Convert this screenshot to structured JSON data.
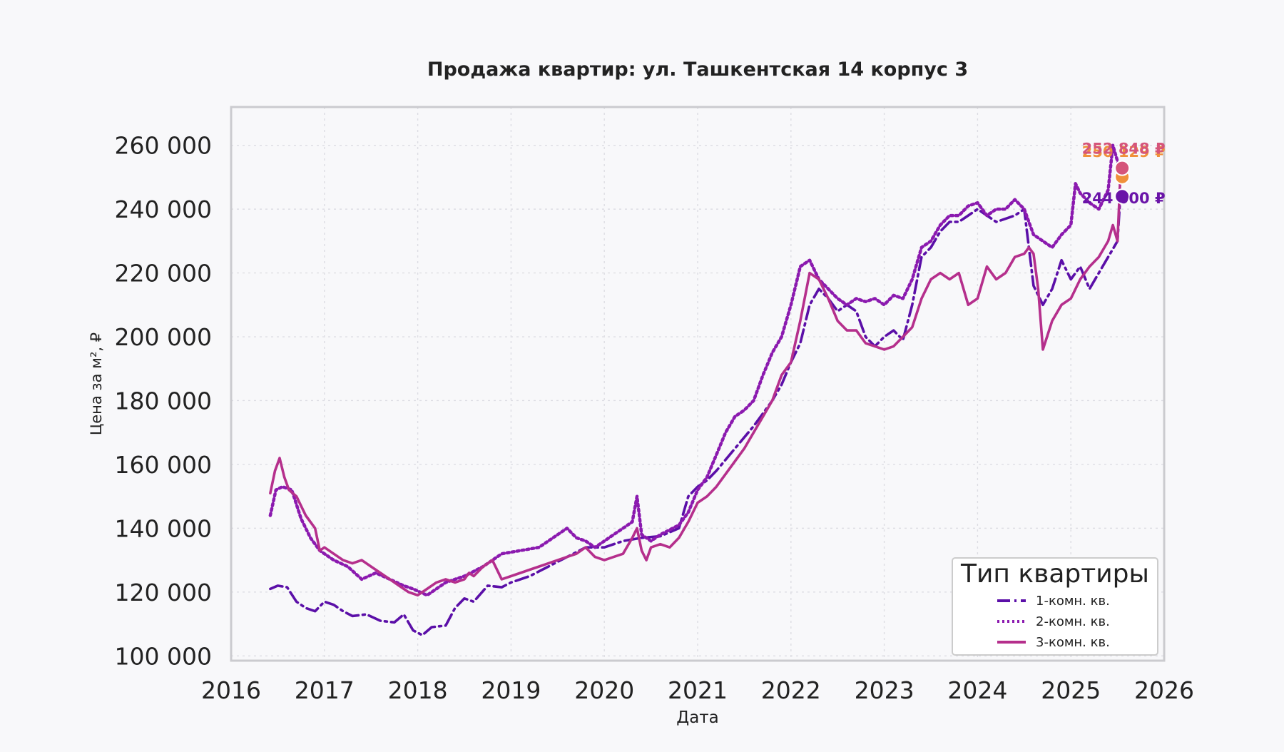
{
  "chart_data": {
    "type": "line",
    "title": "Продажа квартир: ул. Ташкентская 14 корпус 3",
    "xlabel": "Дата",
    "ylabel": "Цена за м², ₽",
    "xlim": [
      2016.0,
      2026.0
    ],
    "ylim": [
      98500,
      272000
    ],
    "x_ticks": [
      2016,
      2017,
      2018,
      2019,
      2020,
      2021,
      2022,
      2023,
      2024,
      2025,
      2026
    ],
    "x_tick_labels": [
      "2016",
      "2017",
      "2018",
      "2019",
      "2020",
      "2021",
      "2022",
      "2023",
      "2024",
      "2025",
      "2026"
    ],
    "y_ticks": [
      100000,
      120000,
      140000,
      160000,
      180000,
      200000,
      220000,
      240000,
      260000
    ],
    "y_tick_labels": [
      "100 000",
      "120 000",
      "140 000",
      "160 000",
      "180 000",
      "200 000",
      "220 000",
      "240 000",
      "260 000"
    ],
    "grid": true,
    "legend": {
      "title": "Тип квартиры",
      "placement": "lower-right"
    },
    "series": [
      {
        "name": "1-комн. кв.",
        "color": "#5b0fa8",
        "style": "dashdot",
        "x": [
          2016.42,
          2016.5,
          2016.6,
          2016.7,
          2016.8,
          2016.9,
          2017.0,
          2017.1,
          2017.2,
          2017.3,
          2017.45,
          2017.6,
          2017.75,
          2017.85,
          2017.95,
          2018.05,
          2018.15,
          2018.3,
          2018.4,
          2018.5,
          2018.6,
          2018.75,
          2018.9,
          2019.0,
          2019.2,
          2019.4,
          2019.6,
          2019.8,
          2020.0,
          2020.2,
          2020.4,
          2020.6,
          2020.8,
          2020.9,
          2021.0,
          2021.1,
          2021.2,
          2021.4,
          2021.6,
          2021.7,
          2021.8,
          2021.9,
          2022.0,
          2022.1,
          2022.2,
          2022.3,
          2022.4,
          2022.5,
          2022.6,
          2022.7,
          2022.8,
          2022.9,
          2023.0,
          2023.1,
          2023.2,
          2023.3,
          2023.4,
          2023.5,
          2023.6,
          2023.7,
          2023.8,
          2023.9,
          2024.0,
          2024.2,
          2024.4,
          2024.5,
          2024.6,
          2024.7,
          2024.8,
          2024.9,
          2025.0,
          2025.1,
          2025.2,
          2025.3,
          2025.4,
          2025.5,
          2025.53
        ],
        "y": [
          121000,
          122000,
          121500,
          117000,
          115000,
          114000,
          117000,
          116000,
          114000,
          112500,
          113000,
          111000,
          110500,
          113000,
          108000,
          106500,
          109000,
          109500,
          115000,
          118000,
          117000,
          122000,
          121500,
          123000,
          125000,
          128000,
          131000,
          134000,
          134000,
          136000,
          137000,
          137500,
          140000,
          150000,
          153000,
          155000,
          158000,
          165000,
          172000,
          176000,
          180000,
          185000,
          192000,
          198000,
          210000,
          215000,
          212000,
          208000,
          210000,
          208000,
          200000,
          197000,
          200000,
          202000,
          199000,
          210000,
          225000,
          228000,
          233000,
          236000,
          236000,
          238000,
          240000,
          236000,
          238000,
          240000,
          216000,
          210000,
          215000,
          224000,
          218000,
          222000,
          215000,
          220000,
          225000,
          230000,
          244000
        ]
      },
      {
        "name": "2-комн. кв.",
        "color": "#8b1aaf",
        "style": "dotted",
        "x": [
          2016.42,
          2016.48,
          2016.55,
          2016.65,
          2016.75,
          2016.85,
          2016.95,
          2017.1,
          2017.25,
          2017.4,
          2017.55,
          2017.7,
          2017.85,
          2017.95,
          2018.1,
          2018.3,
          2018.5,
          2018.7,
          2018.9,
          2019.1,
          2019.3,
          2019.5,
          2019.6,
          2019.7,
          2019.8,
          2019.9,
          2020.0,
          2020.1,
          2020.2,
          2020.3,
          2020.35,
          2020.4,
          2020.5,
          2020.6,
          2020.8,
          2020.9,
          2021.0,
          2021.1,
          2021.2,
          2021.3,
          2021.4,
          2021.5,
          2021.6,
          2021.7,
          2021.8,
          2021.9,
          2022.0,
          2022.1,
          2022.2,
          2022.3,
          2022.4,
          2022.5,
          2022.6,
          2022.7,
          2022.8,
          2022.9,
          2023.0,
          2023.1,
          2023.2,
          2023.3,
          2023.4,
          2023.5,
          2023.6,
          2023.7,
          2023.8,
          2023.9,
          2024.0,
          2024.1,
          2024.2,
          2024.3,
          2024.4,
          2024.5,
          2024.6,
          2024.7,
          2024.8,
          2024.9,
          2025.0,
          2025.05,
          2025.1,
          2025.2,
          2025.3,
          2025.4,
          2025.45,
          2025.5,
          2025.53
        ],
        "y": [
          144000,
          152000,
          153000,
          152000,
          143000,
          137000,
          133000,
          130000,
          128000,
          124000,
          126000,
          124000,
          122000,
          121000,
          119000,
          123000,
          125000,
          128000,
          132000,
          133000,
          134000,
          138000,
          140000,
          137000,
          136000,
          134000,
          136000,
          138000,
          140000,
          142000,
          150000,
          138000,
          136000,
          138000,
          141000,
          145000,
          152000,
          156000,
          163000,
          170000,
          175000,
          177000,
          180000,
          188000,
          195000,
          200000,
          210000,
          222000,
          224000,
          218000,
          215000,
          212000,
          210000,
          212000,
          211000,
          212000,
          210000,
          213000,
          212000,
          218000,
          228000,
          230000,
          235000,
          238000,
          238000,
          241000,
          242000,
          238000,
          240000,
          240000,
          243000,
          240000,
          232000,
          230000,
          228000,
          232000,
          235000,
          248000,
          245000,
          242000,
          240000,
          246000,
          260000,
          255000,
          253000
        ]
      },
      {
        "name": "3-комн. кв.",
        "color": "#b52f8c",
        "style": "solid",
        "x": [
          2016.42,
          2016.47,
          2016.52,
          2016.57,
          2016.62,
          2016.7,
          2016.8,
          2016.9,
          2016.95,
          2017.0,
          2017.1,
          2017.2,
          2017.3,
          2017.4,
          2017.5,
          2017.6,
          2017.7,
          2017.8,
          2017.9,
          2018.0,
          2018.1,
          2018.2,
          2018.3,
          2018.4,
          2018.5,
          2018.55,
          2018.6,
          2018.7,
          2018.8,
          2018.9,
          2019.0,
          2019.2,
          2019.4,
          2019.6,
          2019.7,
          2019.8,
          2019.9,
          2020.0,
          2020.1,
          2020.2,
          2020.3,
          2020.35,
          2020.4,
          2020.45,
          2020.5,
          2020.6,
          2020.7,
          2020.8,
          2020.9,
          2021.0,
          2021.1,
          2021.2,
          2021.3,
          2021.4,
          2021.5,
          2021.6,
          2021.7,
          2021.8,
          2021.9,
          2022.0,
          2022.1,
          2022.2,
          2022.3,
          2022.4,
          2022.5,
          2022.6,
          2022.7,
          2022.8,
          2022.9,
          2023.0,
          2023.1,
          2023.2,
          2023.3,
          2023.4,
          2023.5,
          2023.6,
          2023.7,
          2023.8,
          2023.9,
          2024.0,
          2024.1,
          2024.2,
          2024.3,
          2024.4,
          2024.5,
          2024.55,
          2024.6,
          2024.65,
          2024.7,
          2024.8,
          2024.9,
          2025.0,
          2025.1,
          2025.2,
          2025.3,
          2025.4,
          2025.45,
          2025.5,
          2025.53
        ],
        "y": [
          151000,
          158000,
          162000,
          156000,
          152000,
          150000,
          144000,
          140000,
          133000,
          134000,
          132000,
          130000,
          129000,
          130000,
          128000,
          126000,
          124000,
          122000,
          120000,
          119000,
          121000,
          123000,
          124000,
          123000,
          124000,
          126000,
          125000,
          128000,
          130000,
          124000,
          125000,
          127000,
          129000,
          131000,
          132000,
          134000,
          131000,
          130000,
          131000,
          132000,
          137000,
          140000,
          133000,
          130000,
          134000,
          135000,
          134000,
          137000,
          142000,
          148000,
          150000,
          153000,
          157000,
          161000,
          165000,
          170000,
          175000,
          180000,
          188000,
          192000,
          205000,
          220000,
          218000,
          212000,
          205000,
          202000,
          202000,
          198000,
          197000,
          196000,
          197000,
          200000,
          203000,
          212000,
          218000,
          220000,
          218000,
          220000,
          210000,
          212000,
          222000,
          218000,
          220000,
          225000,
          226000,
          228000,
          226000,
          215000,
          196000,
          205000,
          210000,
          212000,
          218000,
          222000,
          225000,
          230000,
          235000,
          230000,
          250000
        ]
      }
    ],
    "end_markers": [
      {
        "label": "250 129 ₽",
        "x": 2025.55,
        "y": 250129,
        "color": "#f0913a"
      },
      {
        "label": "252 848 ₽",
        "x": 2025.55,
        "y": 252848,
        "color": "#d5557a"
      },
      {
        "label": "244 000 ₽",
        "x": 2025.55,
        "y": 244000,
        "color": "#6a14a8"
      }
    ]
  }
}
